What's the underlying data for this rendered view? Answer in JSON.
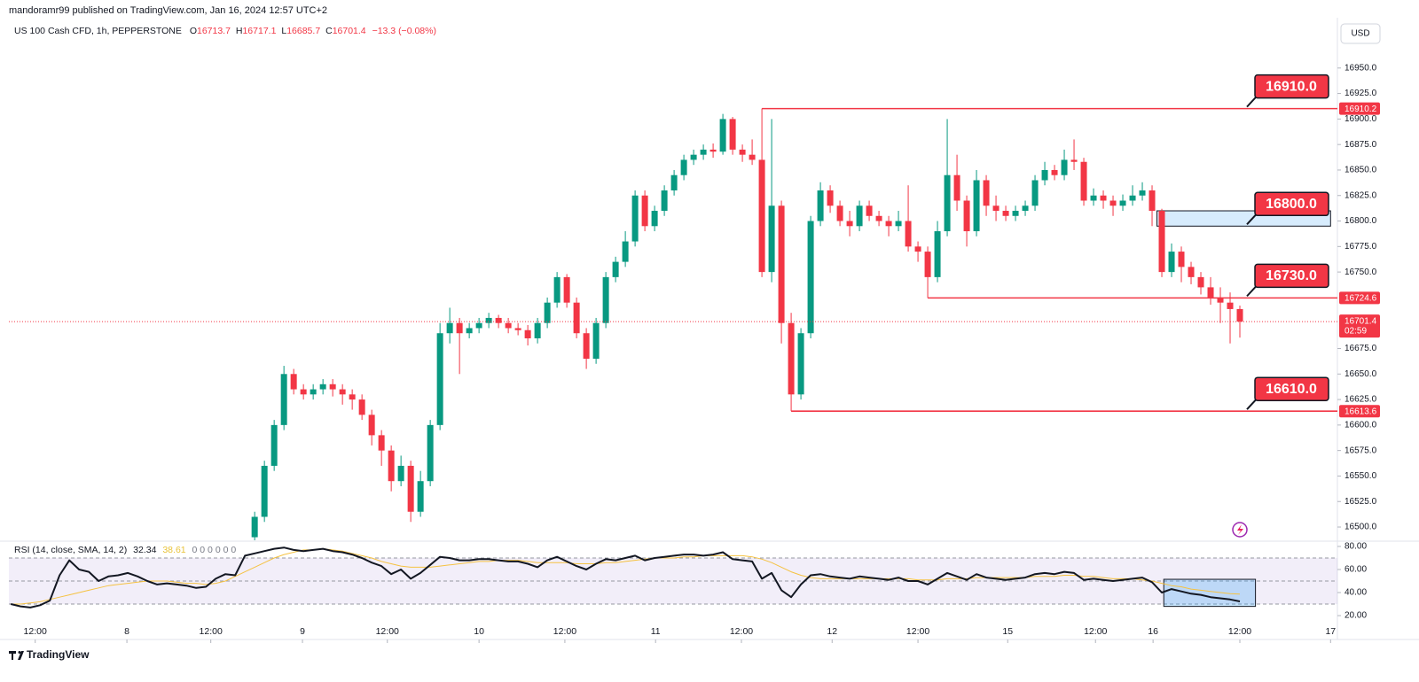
{
  "header": {
    "publisher": "mandoramr99 published on TradingView.com, Jan 16, 2024 12:57 UTC+2",
    "symbol": "US 100 Cash CFD, 1h, PEPPERSTONE",
    "keys": [
      "O",
      "H",
      "L",
      "C"
    ],
    "change": "−13.3 (−0.08%)",
    "currency": "USD",
    "footer": "TradingView"
  },
  "chart_data": {
    "type": "candlestick",
    "open": [
      null,
      null,
      null,
      null,
      null,
      null,
      null,
      null,
      null,
      null,
      null,
      null,
      null,
      null,
      null,
      null,
      null,
      null,
      null,
      null,
      null,
      null,
      null,
      null,
      null,
      16490,
      16510,
      16560,
      16600,
      16650,
      16635,
      16630,
      16635,
      16640,
      16635,
      16630,
      16625,
      16610,
      16590,
      16575,
      16545,
      16560,
      16515,
      16545,
      16600,
      16690,
      16700,
      16690,
      16695,
      16700,
      16705,
      16700,
      16695,
      16693,
      16685,
      16700,
      16720,
      16745,
      16720,
      16690,
      16665,
      16700,
      16745,
      16760,
      16780,
      16825,
      16795,
      16810,
      16830,
      16845,
      16860,
      16865,
      16870,
      16868,
      16900,
      16870,
      16865,
      16860,
      16750,
      16815,
      16700,
      16630,
      16690,
      16800,
      16830,
      16815,
      16800,
      16795,
      16815,
      16805,
      16800,
      16795,
      16800,
      16775,
      16770,
      16745,
      16790,
      16845,
      16820,
      16790,
      16840,
      16815,
      16810,
      16805,
      16810,
      16815,
      16840,
      16850,
      16845,
      16860,
      16858,
      16820,
      16825,
      16820,
      16815,
      16820,
      16825,
      16830,
      16810,
      16750,
      16770,
      16755,
      16745,
      16735,
      16725,
      16720,
      16713.7
    ],
    "high": [
      null,
      null,
      null,
      null,
      null,
      null,
      null,
      null,
      null,
      null,
      null,
      null,
      null,
      null,
      null,
      null,
      null,
      null,
      null,
      null,
      null,
      null,
      null,
      null,
      null,
      16515,
      16565,
      16605,
      16658,
      16655,
      16640,
      16640,
      16645,
      16645,
      16640,
      16635,
      16630,
      16615,
      16595,
      16580,
      16570,
      16565,
      16555,
      16605,
      16700,
      16715,
      16705,
      16700,
      16705,
      16710,
      16708,
      16705,
      16700,
      16698,
      16705,
      16725,
      16750,
      16748,
      16725,
      16695,
      16705,
      16750,
      16765,
      16790,
      16830,
      16830,
      16815,
      16835,
      16850,
      16865,
      16870,
      16875,
      16876,
      16905,
      16902,
      16875,
      16880,
      16910.2,
      16900,
      16820,
      16710,
      16695,
      16805,
      16838,
      16835,
      16820,
      16810,
      16820,
      16820,
      16810,
      16805,
      16810,
      16835,
      16780,
      16775,
      16800,
      16900,
      16865,
      16825,
      16850,
      16845,
      16825,
      16815,
      16815,
      16820,
      16845,
      16858,
      16855,
      16870,
      16880,
      16862,
      16832,
      16830,
      16825,
      16826,
      16835,
      16838,
      16835,
      16812,
      16778,
      16775,
      16760,
      16750,
      16745,
      16735,
      16730,
      16717.1
    ],
    "low": [
      null,
      null,
      null,
      null,
      null,
      null,
      null,
      null,
      null,
      null,
      null,
      null,
      null,
      null,
      null,
      null,
      null,
      null,
      null,
      null,
      null,
      null,
      null,
      null,
      null,
      16485,
      16505,
      16555,
      16595,
      16630,
      16625,
      16625,
      16630,
      16628,
      16620,
      16615,
      16605,
      16580,
      16560,
      16535,
      16540,
      16505,
      16510,
      16540,
      16595,
      16680,
      16650,
      16685,
      16690,
      16695,
      16695,
      16690,
      16688,
      16678,
      16680,
      16695,
      16715,
      16715,
      16685,
      16655,
      16660,
      16695,
      16740,
      16755,
      16775,
      16790,
      16790,
      16805,
      16825,
      16840,
      16855,
      16860,
      16862,
      16865,
      16865,
      16858,
      16855,
      16745,
      16740,
      16680,
      16613.6,
      16625,
      16685,
      16795,
      16808,
      16795,
      16785,
      16790,
      16800,
      16795,
      16785,
      16790,
      16770,
      16760,
      16724.6,
      16740,
      16785,
      16810,
      16775,
      16785,
      16805,
      16800,
      16800,
      16800,
      16805,
      16810,
      16835,
      16840,
      16840,
      16850,
      16815,
      16815,
      16812,
      16805,
      16810,
      16815,
      16820,
      16795,
      16745,
      16745,
      16740,
      16738,
      16728,
      16718,
      16700,
      16680,
      16685.7
    ],
    "close": [
      null,
      null,
      null,
      null,
      null,
      null,
      null,
      null,
      null,
      null,
      null,
      null,
      null,
      null,
      null,
      null,
      null,
      null,
      null,
      null,
      null,
      null,
      null,
      null,
      null,
      16510,
      16560,
      16600,
      16650,
      16635,
      16630,
      16635,
      16640,
      16635,
      16630,
      16625,
      16610,
      16590,
      16575,
      16545,
      16560,
      16515,
      16545,
      16600,
      16690,
      16700,
      16690,
      16695,
      16700,
      16705,
      16700,
      16695,
      16693,
      16685,
      16700,
      16720,
      16745,
      16720,
      16690,
      16665,
      16700,
      16745,
      16760,
      16780,
      16825,
      16795,
      16810,
      16830,
      16845,
      16860,
      16865,
      16870,
      16868,
      16900,
      16870,
      16865,
      16860,
      16750,
      16815,
      16700,
      16630,
      16690,
      16800,
      16830,
      16815,
      16800,
      16795,
      16815,
      16805,
      16800,
      16795,
      16800,
      16775,
      16770,
      16745,
      16790,
      16845,
      16820,
      16790,
      16840,
      16815,
      16810,
      16805,
      16810,
      16815,
      16840,
      16850,
      16845,
      16860,
      16858,
      16820,
      16825,
      16820,
      16815,
      16820,
      16825,
      16830,
      16810,
      16750,
      16770,
      16755,
      16745,
      16735,
      16725,
      16720,
      16713.7,
      16701.4
    ],
    "up_color": "#089981",
    "down_color": "#f23645",
    "xlim": [
      -0.2,
      136
    ],
    "xticks": [
      {
        "value": 2.5,
        "label": "12:00"
      },
      {
        "value": 11.9,
        "label": "8"
      },
      {
        "value": 20.5,
        "label": "12:00"
      },
      {
        "value": 29.9,
        "label": "9"
      },
      {
        "value": 38.6,
        "label": "12:00"
      },
      {
        "value": 48,
        "label": "10"
      },
      {
        "value": 56.8,
        "label": "12:00"
      },
      {
        "value": 66.1,
        "label": "11"
      },
      {
        "value": 74.9,
        "label": "12:00"
      },
      {
        "value": 84.2,
        "label": "12"
      },
      {
        "value": 93,
        "label": "12:00"
      },
      {
        "value": 102.2,
        "label": "15"
      },
      {
        "value": 111.2,
        "label": "12:00"
      },
      {
        "value": 117.1,
        "label": "16"
      },
      {
        "value": 126,
        "label": "12:00"
      },
      {
        "value": 135.3,
        "label": "17"
      }
    ],
    "ylim": [
      16487,
      16975
    ],
    "yticks": [
      {
        "value": 16950,
        "label": "16950.0"
      },
      {
        "value": 16925,
        "label": "16925.0"
      },
      {
        "value": 16900,
        "label": "16900.0"
      },
      {
        "value": 16875,
        "label": "16875.0"
      },
      {
        "value": 16850,
        "label": "16850.0"
      },
      {
        "value": 16825,
        "label": "16825.0"
      },
      {
        "value": 16800,
        "label": "16800.0"
      },
      {
        "value": 16775,
        "label": "16775.0"
      },
      {
        "value": 16750,
        "label": "16750.0"
      },
      {
        "value": 16675,
        "label": "16675.0"
      },
      {
        "value": 16650,
        "label": "16650.0"
      },
      {
        "value": 16625,
        "label": "16625.0"
      },
      {
        "value": 16600,
        "label": "16600.0"
      },
      {
        "value": 16575,
        "label": "16575.0"
      },
      {
        "value": 16550,
        "label": "16550.0"
      },
      {
        "value": 16525,
        "label": "16525.0"
      },
      {
        "value": 16500,
        "label": "16500.0"
      }
    ],
    "grid": false,
    "countdown": "02:59",
    "levels": [
      {
        "value": 16910.2,
        "from": 77,
        "callout": "16910.0"
      },
      {
        "value": 16724.6,
        "from": 94,
        "callout": "16730.0"
      },
      {
        "value": 16613.6,
        "from": 80,
        "callout": "16610.0"
      }
    ],
    "zone": {
      "from": 117.5,
      "to": 135.3,
      "low": 16795,
      "high": 16810,
      "callout": "16800.0"
    },
    "rsi": {
      "title": "RSI (14, close, SMA, 14, 2)",
      "extra": "0  0  0  0  0  0",
      "color": "#131722",
      "sma_color": "#f5c242",
      "values": [
        30,
        28,
        27,
        29,
        33,
        55,
        68,
        60,
        58,
        50,
        54,
        55,
        57,
        54,
        50,
        47,
        48,
        47,
        46,
        44,
        45,
        52,
        56,
        55,
        72,
        74,
        76,
        78,
        79,
        77,
        76,
        77,
        78,
        76,
        75,
        73,
        70,
        66,
        63,
        56,
        60,
        52,
        57,
        64,
        71,
        70,
        68,
        68,
        69,
        69,
        68,
        67,
        67,
        65,
        62,
        68,
        71,
        67,
        63,
        60,
        65,
        69,
        68,
        70,
        72,
        68,
        70,
        71,
        72,
        73,
        73,
        72,
        73,
        75,
        69,
        68,
        67,
        52,
        57,
        42,
        36,
        47,
        55,
        56,
        54,
        53,
        52,
        54,
        53,
        52,
        51,
        53,
        50,
        50,
        47,
        52,
        57,
        54,
        51,
        56,
        53,
        52,
        51,
        52,
        53,
        56,
        57,
        56,
        58,
        57,
        51,
        52,
        51,
        50,
        51,
        52,
        53,
        49,
        40,
        43,
        41,
        39,
        38,
        36,
        35,
        34,
        32.34
      ],
      "sma": [
        30,
        30,
        31,
        32,
        34,
        36,
        38,
        40,
        42,
        44,
        46,
        47,
        48,
        49,
        50,
        50,
        50,
        49,
        48,
        48,
        47,
        48,
        50,
        54,
        58,
        62,
        66,
        70,
        73,
        75,
        77,
        77,
        78,
        77,
        76,
        74,
        72,
        70,
        67,
        65,
        63,
        62,
        62,
        62,
        63,
        64,
        65,
        66,
        67,
        67,
        68,
        68,
        68,
        67,
        66,
        66,
        66,
        66,
        65,
        65,
        65,
        66,
        66,
        67,
        68,
        69,
        70,
        70,
        70,
        71,
        71,
        72,
        72,
        72,
        72,
        72,
        71,
        69,
        66,
        62,
        58,
        55,
        53,
        52,
        52,
        52,
        52,
        52,
        52,
        52,
        52,
        52,
        52,
        51,
        51,
        51,
        52,
        52,
        52,
        53,
        53,
        53,
        53,
        53,
        53,
        54,
        54,
        54,
        55,
        55,
        54,
        54,
        53,
        52,
        52,
        52,
        51,
        50,
        48,
        46,
        45,
        43,
        42,
        41,
        40,
        39,
        38.61
      ],
      "ylim": [
        16.2,
        83.8
      ],
      "yticks": [
        {
          "value": 80,
          "label": "80.00"
        },
        {
          "value": 60,
          "label": "60.00"
        },
        {
          "value": 40,
          "label": "40.00"
        },
        {
          "value": 20,
          "label": "20.00"
        }
      ],
      "bands": [
        70,
        50,
        30
      ],
      "box": {
        "from": 118.2,
        "to": 127.6,
        "low": 28,
        "high": 51.5
      }
    }
  }
}
